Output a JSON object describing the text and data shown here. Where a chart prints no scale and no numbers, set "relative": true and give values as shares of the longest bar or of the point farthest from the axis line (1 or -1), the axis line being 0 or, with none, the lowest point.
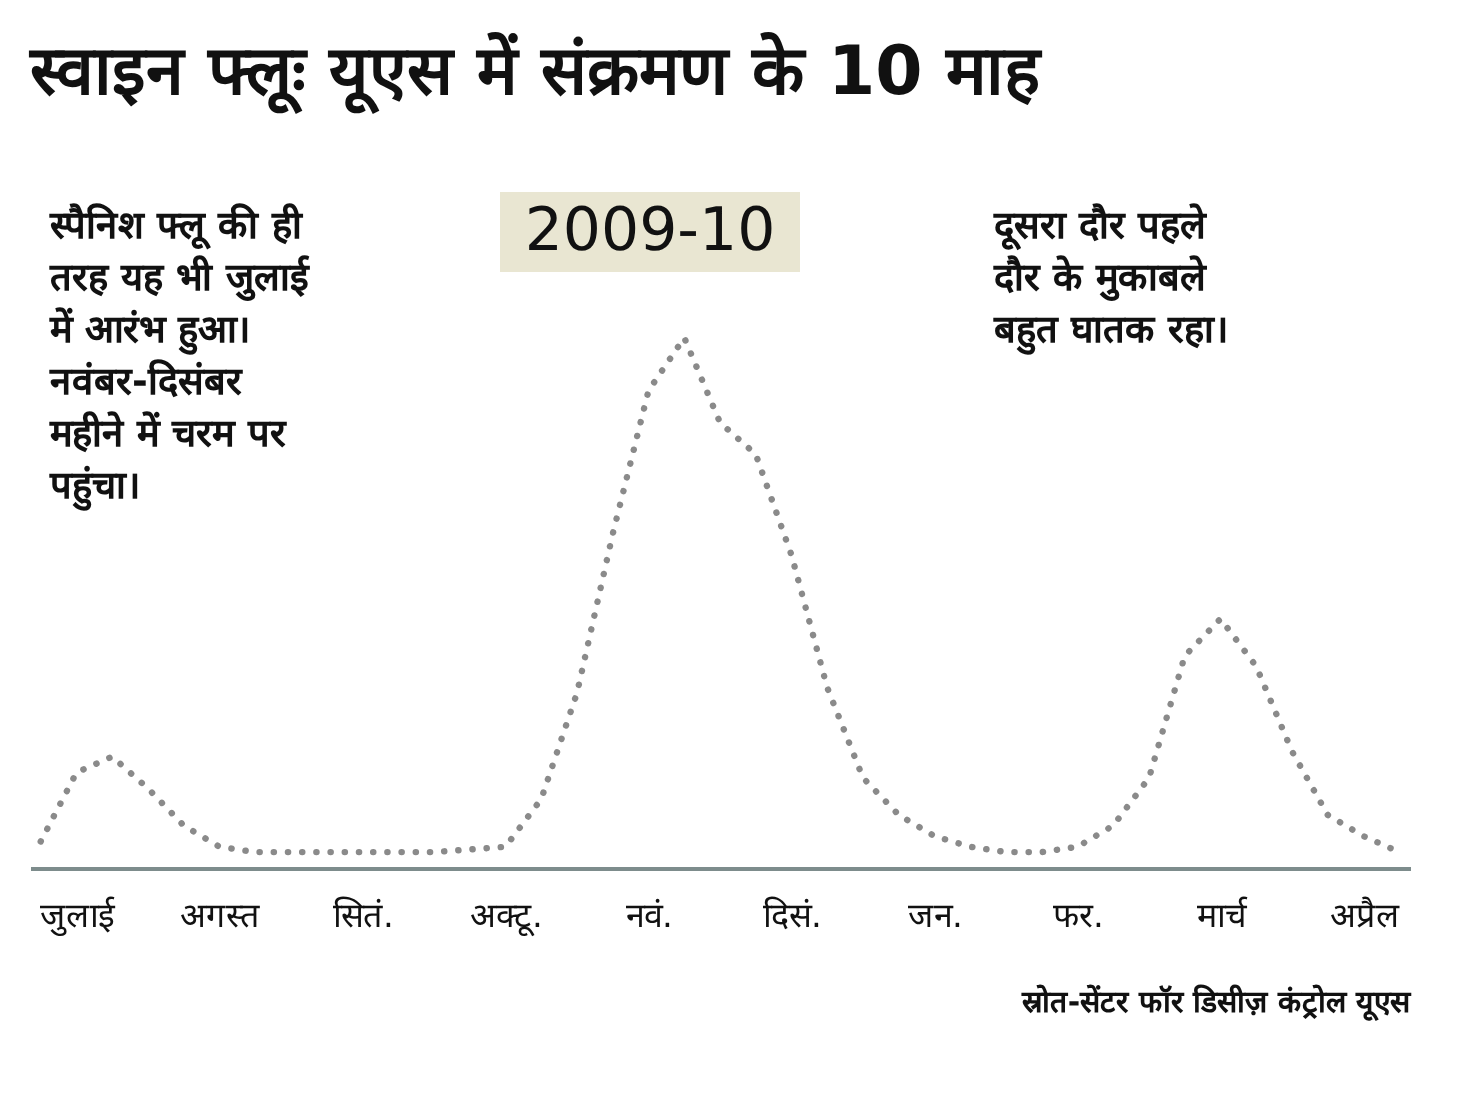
{
  "chart_data": {
    "type": "line",
    "title": "स्वाइन फ्लूः यूएस में संक्रमण के 10 माह",
    "relative": true,
    "line_style": "dotted",
    "grid": false,
    "tick_labels": "x",
    "categories": [
      null,
      "जुलाई",
      null,
      null,
      null,
      "अगस्त",
      null,
      null,
      null,
      "सितं.",
      null,
      null,
      null,
      "अक्टू.",
      null,
      null,
      null,
      "नवं.",
      null,
      null,
      null,
      "दिसं.",
      null,
      null,
      null,
      "जन.",
      null,
      null,
      null,
      "फर.",
      null,
      null,
      null,
      "मार्च",
      null,
      null,
      null,
      "अप्रैल",
      null
    ],
    "series": [
      {
        "color": "#8a8a8a",
        "values": [
          0.05,
          0.18,
          0.21,
          0.15,
          0.08,
          0.04,
          0.03,
          0.03,
          0.03,
          0.03,
          0.03,
          0.03,
          0.035,
          0.04,
          0.13,
          0.33,
          0.63,
          0.9,
          1.0,
          0.84,
          0.78,
          0.59,
          0.34,
          0.17,
          0.1,
          0.06,
          0.04,
          0.03,
          0.03,
          0.04,
          0.08,
          0.17,
          0.4,
          0.47,
          0.38,
          0.22,
          0.1,
          0.06,
          0.03
        ]
      }
    ],
    "annotations": [
      "2009-10",
      "स्पैनिश फ्लू की ही\nतरह यह भी जुलाई\nमें आरंभ हुआ।\nनवंबर-दिसंबर\nमहीने में चरम पर\nपहुंचा।",
      "दूसरा दौर पहले\nदौर के मुकाबले\nबहुत घातक रहा।",
      "स्रोत-सेंटर फॉर डिसीज़ कंट्रोल यूएस"
    ]
  }
}
